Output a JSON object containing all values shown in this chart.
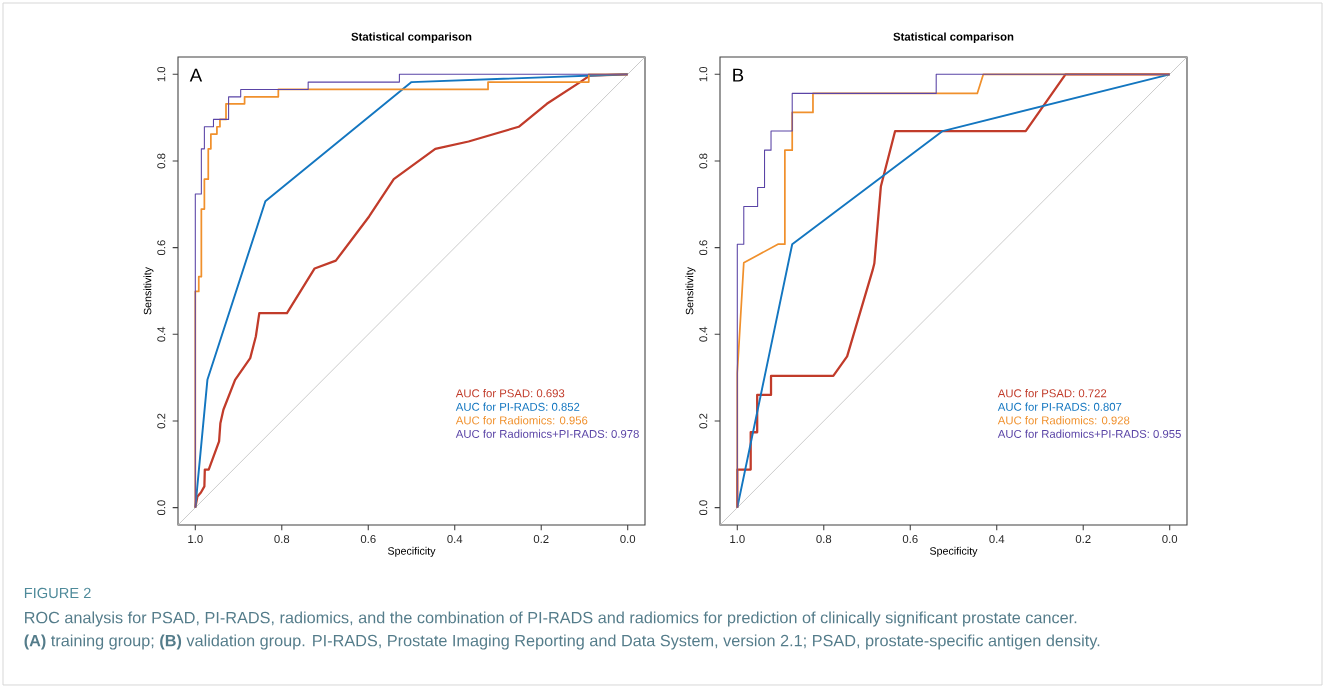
{
  "chart_data": [
    {
      "type": "line",
      "title": "Statistical comparison",
      "xlabel": "Specificity",
      "ylabel": "Sensitivity",
      "xlim": [
        1.04,
        -0.04
      ],
      "ylim": [
        -0.04,
        1.04
      ],
      "xticks": [
        {
          "value": 1.0,
          "label": "1.0"
        },
        {
          "value": 0.8,
          "label": "0.8"
        },
        {
          "value": 0.6,
          "label": "0.6"
        },
        {
          "value": 0.4,
          "label": "0.4"
        },
        {
          "value": 0.2,
          "label": "0.2"
        },
        {
          "value": 0.0,
          "label": "0.0"
        }
      ],
      "yticks": [
        {
          "value": 0.0,
          "label": "0.0"
        },
        {
          "value": 0.2,
          "label": "0.2"
        },
        {
          "value": 0.4,
          "label": "0.4"
        },
        {
          "value": 0.6,
          "label": "0.6"
        },
        {
          "value": 0.8,
          "label": "0.8"
        },
        {
          "value": 1.0,
          "label": "1.0"
        }
      ],
      "legend": "bottom right",
      "annotations": [
        "A",
        "FIGURE 2",
        "ROC analysis for PSAD, PI-RADS, radiomics, and the combination of PI-RADS and radiomics for prediction of clinically significant prostate cancer.",
        "**(A)** training group; **(B)** validation group. PI-RADS, Prostate Imaging Reporting and Data System, version 2.1; PSAD, prostate-specific antigen density."
      ],
      "series": [
        {
          "name": null,
          "color": "#bebebe",
          "x": [
            1.04,
            -0.04
          ],
          "values": [
            -0.04,
            1.04
          ]
        },
        {
          "name": "AUC for PSAD: 0.693",
          "color": "#c13b2a",
          "x": [
            1,
            0.995,
            0.987,
            0.979,
            0.978,
            0.969,
            0.945,
            0.942,
            0.935,
            0.908,
            0.873,
            0.86,
            0.852,
            0.788,
            0.724,
            0.675,
            0.598,
            0.541,
            0.445,
            0.368,
            0.252,
            0.187,
            0.11,
            0.088,
            0
          ],
          "values": [
            0,
            0.026,
            0.035,
            0.049,
            0.088,
            0.088,
            0.153,
            0.195,
            0.226,
            0.295,
            0.345,
            0.395,
            0.449,
            0.449,
            0.552,
            0.57,
            0.672,
            0.758,
            0.828,
            0.845,
            0.879,
            0.932,
            0.982,
            0.997,
            1
          ]
        },
        {
          "name": "AUC for PI-RADS: 0.852",
          "color": "#1376c0",
          "x": [
            1,
            0.972,
            0.838,
            0.5,
            0
          ],
          "values": [
            0,
            0.295,
            0.707,
            0.982,
            1
          ]
        },
        {
          "name": "AUC for Radiomics: 0.956",
          "color": "#f0902c",
          "x": [
            1,
            1,
            0.992,
            0.992,
            0.986,
            0.986,
            0.979,
            0.979,
            0.97,
            0.97,
            0.964,
            0.964,
            0.95,
            0.95,
            0.943,
            0.943,
            0.929,
            0.929,
            0.886,
            0.886,
            0.808,
            0.808,
            0.323,
            0.323,
            0.09,
            0.09,
            0
          ],
          "values": [
            0,
            0.499,
            0.499,
            0.533,
            0.533,
            0.689,
            0.689,
            0.758,
            0.758,
            0.828,
            0.828,
            0.862,
            0.862,
            0.879,
            0.879,
            0.896,
            0.896,
            0.932,
            0.932,
            0.948,
            0.948,
            0.965,
            0.965,
            0.982,
            0.982,
            1,
            1
          ]
        },
        {
          "name": "AUC for Radiomics+PI-RADS: 0.978",
          "color": "#5a44a6",
          "x": [
            1,
            1,
            0.986,
            0.986,
            0.979,
            0.979,
            0.958,
            0.958,
            0.923,
            0.923,
            0.895,
            0.895,
            0.739,
            0.739,
            0.528,
            0.528,
            0
          ],
          "values": [
            0,
            0.724,
            0.724,
            0.828,
            0.828,
            0.879,
            0.879,
            0.896,
            0.896,
            0.948,
            0.948,
            0.965,
            0.965,
            0.982,
            0.982,
            1,
            1
          ]
        }
      ]
    },
    {
      "type": "line",
      "title": "Statistical comparison",
      "xlabel": "Specificity",
      "ylabel": "Sensitivity",
      "xlim": [
        1.04,
        -0.04
      ],
      "ylim": [
        -0.04,
        1.04
      ],
      "xticks": [
        {
          "value": 1.0,
          "label": "1.0"
        },
        {
          "value": 0.8,
          "label": "0.8"
        },
        {
          "value": 0.6,
          "label": "0.6"
        },
        {
          "value": 0.4,
          "label": "0.4"
        },
        {
          "value": 0.2,
          "label": "0.2"
        },
        {
          "value": 0.0,
          "label": "0.0"
        }
      ],
      "yticks": [
        {
          "value": 0.0,
          "label": "0.0"
        },
        {
          "value": 0.2,
          "label": "0.2"
        },
        {
          "value": 0.4,
          "label": "0.4"
        },
        {
          "value": 0.6,
          "label": "0.6"
        },
        {
          "value": 0.8,
          "label": "0.8"
        },
        {
          "value": 1.0,
          "label": "1.0"
        }
      ],
      "legend": "bottom right",
      "annotations": [
        "B"
      ],
      "series": [
        {
          "name": null,
          "color": "#bebebe",
          "x": [
            1.04,
            -0.04
          ],
          "values": [
            -0.04,
            1.04
          ]
        },
        {
          "name": "AUC for PSAD: 0.722",
          "color": "#c13b2a",
          "x": [
            1,
            1,
            0.969,
            0.969,
            0.954,
            0.954,
            0.922,
            0.922,
            0.778,
            0.746,
            0.687,
            0.683,
            0.668,
            0.635,
            0.333,
            0.241,
            0
          ],
          "values": [
            0,
            0.088,
            0.088,
            0.174,
            0.174,
            0.26,
            0.26,
            0.304,
            0.304,
            0.349,
            0.548,
            0.564,
            0.741,
            0.869,
            0.869,
            1,
            1
          ]
        },
        {
          "name": "AUC for PI-RADS: 0.807",
          "color": "#1376c0",
          "x": [
            1,
            0.873,
            0.525,
            0
          ],
          "values": [
            0,
            0.608,
            0.869,
            1
          ]
        },
        {
          "name": "AUC for Radiomics: 0.928",
          "color": "#f0902c",
          "x": [
            1,
            1,
            0.985,
            0.906,
            0.89,
            0.89,
            0.873,
            0.873,
            0.825,
            0.825,
            0.445,
            0.431,
            0
          ],
          "values": [
            0,
            0.31,
            0.565,
            0.608,
            0.608,
            0.825,
            0.825,
            0.912,
            0.912,
            0.956,
            0.956,
            1,
            1
          ]
        },
        {
          "name": "AUC for Radiomics+PI-RADS: 0.955",
          "color": "#5a44a6",
          "x": [
            1,
            1,
            0.985,
            0.985,
            0.953,
            0.953,
            0.937,
            0.937,
            0.922,
            0.922,
            0.873,
            0.873,
            0.54,
            0.54,
            0
          ],
          "values": [
            0,
            0.608,
            0.608,
            0.695,
            0.695,
            0.739,
            0.739,
            0.825,
            0.825,
            0.869,
            0.869,
            0.956,
            0.956,
            1,
            1
          ]
        }
      ]
    }
  ]
}
